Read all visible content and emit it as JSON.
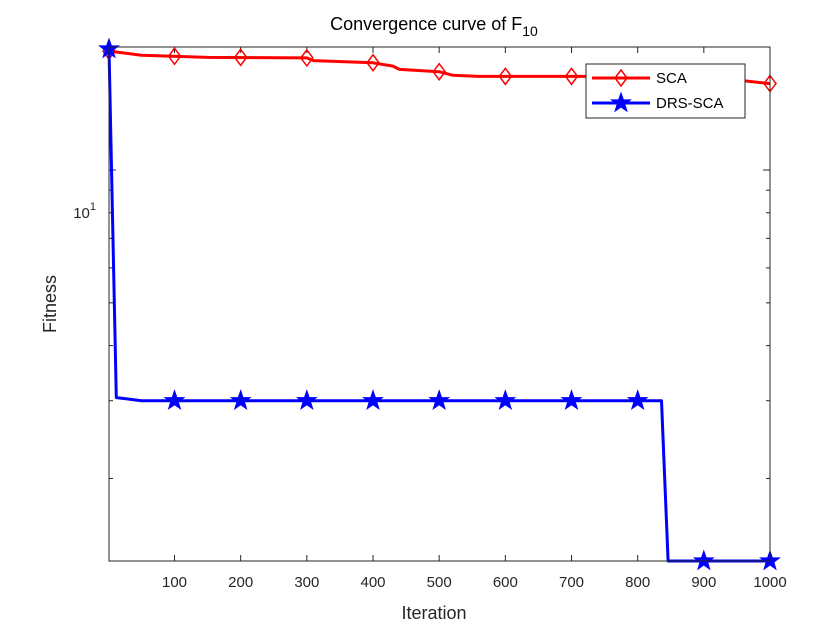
{
  "chart_data": {
    "type": "line",
    "title_main": "Convergence curve of F",
    "title_sub": "10",
    "xlabel": "Iteration",
    "ylabel": "Fitness",
    "xlim": [
      1,
      1000
    ],
    "ylim": [
      1.3,
      19
    ],
    "yscale": "log",
    "x_ticks": [
      100,
      200,
      300,
      400,
      500,
      600,
      700,
      800,
      900,
      1000
    ],
    "y_ticks": [
      10
    ],
    "y_tick_label_base": "10",
    "y_tick_label_exp": "1",
    "legend_position": "top-right",
    "series": [
      {
        "name": "SCA",
        "color": "#ff0000",
        "marker": "diamond",
        "points": [
          [
            1,
            18.6
          ],
          [
            50,
            18.2
          ],
          [
            150,
            18.0
          ],
          [
            300,
            17.95
          ],
          [
            310,
            17.7
          ],
          [
            400,
            17.5
          ],
          [
            430,
            17.2
          ],
          [
            440,
            16.9
          ],
          [
            500,
            16.7
          ],
          [
            520,
            16.4
          ],
          [
            560,
            16.3
          ],
          [
            900,
            16.3
          ],
          [
            1000,
            15.7
          ]
        ],
        "marker_x": [
          1,
          100,
          200,
          300,
          400,
          500,
          600,
          700,
          800,
          900,
          1000
        ],
        "marker_y": [
          18.6,
          18.1,
          18.0,
          17.95,
          17.5,
          16.7,
          16.3,
          16.3,
          16.3,
          16.3,
          15.7
        ]
      },
      {
        "name": "DRS-SCA",
        "color": "#0000ff",
        "marker": "star",
        "points": [
          [
            1,
            18.8
          ],
          [
            12,
            3.05
          ],
          [
            50,
            3.0
          ],
          [
            836,
            3.0
          ],
          [
            846,
            1.3
          ],
          [
            1000,
            1.3
          ]
        ],
        "marker_x": [
          1,
          100,
          200,
          300,
          400,
          500,
          600,
          700,
          800,
          900,
          1000
        ],
        "marker_y": [
          18.8,
          3.0,
          3.0,
          3.0,
          3.0,
          3.0,
          3.0,
          3.0,
          3.0,
          1.3,
          1.3
        ]
      }
    ]
  }
}
